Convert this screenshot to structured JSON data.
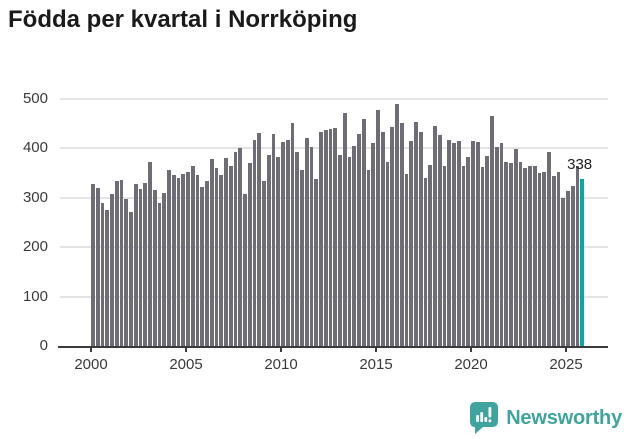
{
  "chart_data": {
    "type": "bar",
    "title": "Födda per kvartal i Norrköping",
    "xlabel": "",
    "ylabel": "",
    "ylim": [
      0,
      500
    ],
    "y_ticks": [
      0,
      100,
      200,
      300,
      400,
      500
    ],
    "x_tick_labels": [
      "2000",
      "2005",
      "2010",
      "2015",
      "2020",
      "2025"
    ],
    "grid": true,
    "legend": "none",
    "annotation_label": "338",
    "highlight_index": 103,
    "categories": [
      "2000Q1",
      "2000Q2",
      "2000Q3",
      "2000Q4",
      "2001Q1",
      "2001Q2",
      "2001Q3",
      "2001Q4",
      "2002Q1",
      "2002Q2",
      "2002Q3",
      "2002Q4",
      "2003Q1",
      "2003Q2",
      "2003Q3",
      "2003Q4",
      "2004Q1",
      "2004Q2",
      "2004Q3",
      "2004Q4",
      "2005Q1",
      "2005Q2",
      "2005Q3",
      "2005Q4",
      "2006Q1",
      "2006Q2",
      "2006Q3",
      "2006Q4",
      "2007Q1",
      "2007Q2",
      "2007Q3",
      "2007Q4",
      "2008Q1",
      "2008Q2",
      "2008Q3",
      "2008Q4",
      "2009Q1",
      "2009Q2",
      "2009Q3",
      "2009Q4",
      "2010Q1",
      "2010Q2",
      "2010Q3",
      "2010Q4",
      "2011Q1",
      "2011Q2",
      "2011Q3",
      "2011Q4",
      "2012Q1",
      "2012Q2",
      "2012Q3",
      "2012Q4",
      "2013Q1",
      "2013Q2",
      "2013Q3",
      "2013Q4",
      "2014Q1",
      "2014Q2",
      "2014Q3",
      "2014Q4",
      "2015Q1",
      "2015Q2",
      "2015Q3",
      "2015Q4",
      "2016Q1",
      "2016Q2",
      "2016Q3",
      "2016Q4",
      "2017Q1",
      "2017Q2",
      "2017Q3",
      "2017Q4",
      "2018Q1",
      "2018Q2",
      "2018Q3",
      "2018Q4",
      "2019Q1",
      "2019Q2",
      "2019Q3",
      "2019Q4",
      "2020Q1",
      "2020Q2",
      "2020Q3",
      "2020Q4",
      "2021Q1",
      "2021Q2",
      "2021Q3",
      "2021Q4",
      "2022Q1",
      "2022Q2",
      "2022Q3",
      "2022Q4",
      "2023Q1",
      "2023Q2",
      "2023Q3",
      "2023Q4",
      "2024Q1",
      "2024Q2",
      "2024Q3",
      "2024Q4",
      "2025Q1",
      "2025Q2",
      "2025Q3",
      "2025Q4"
    ],
    "values": [
      327,
      320,
      290,
      276,
      308,
      334,
      337,
      298,
      272,
      327,
      318,
      329,
      373,
      316,
      289,
      310,
      356,
      346,
      341,
      349,
      352,
      364,
      347,
      322,
      335,
      378,
      361,
      346,
      380,
      364,
      393,
      400,
      308,
      371,
      418,
      432,
      335,
      387,
      430,
      383,
      412,
      418,
      451,
      393,
      356,
      422,
      402,
      339,
      433,
      438,
      440,
      442,
      387,
      471,
      383,
      404,
      430,
      459,
      356,
      411,
      477,
      434,
      373,
      443,
      489,
      451,
      349,
      414,
      454,
      434,
      341,
      366,
      445,
      427,
      364,
      417,
      410,
      414,
      364,
      383,
      415,
      412,
      362,
      384,
      466,
      403,
      410,
      373,
      371,
      398,
      372,
      361,
      364,
      364,
      350,
      352,
      392,
      345,
      352,
      299,
      313,
      323,
      364,
      338
    ],
    "colors": {
      "bar": "#6e6d75",
      "highlight": "#0aa6a0",
      "grid": "#e4e4e4",
      "axis": "#3b3b3b",
      "tick_text": "#3a3a3a",
      "title": "#1a1a1a",
      "annotation": "#1e1e1e"
    }
  },
  "footer": {
    "logo_text": "Newsworthy",
    "logo_color": "#3fa49d"
  }
}
